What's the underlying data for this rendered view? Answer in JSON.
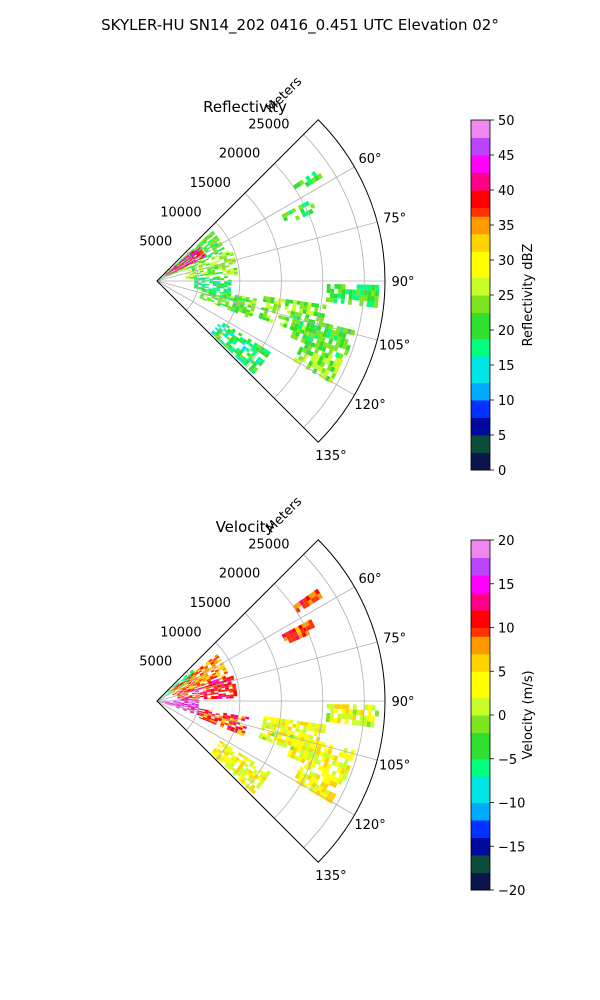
{
  "figure": {
    "title": "SKYLER-HU  SN14_202  0416_0.451 UTC Elevation 02°"
  },
  "chart_data": [
    {
      "type": "heatmap",
      "subtype": "polar-sector",
      "title": "Reflectivity",
      "radial_label": "Meters",
      "radial_ticks": [
        5000,
        10000,
        15000,
        20000,
        25000
      ],
      "radial_max": 27500,
      "angle_ticks": [
        "60°",
        "75°",
        "90°",
        "105°",
        "120°",
        "135°"
      ],
      "angle_tick_values": [
        60,
        75,
        90,
        105,
        120,
        135
      ],
      "theta_range": [
        45,
        135
      ],
      "colorbar": {
        "label": "Reflectivity dBZ",
        "ticks": [
          "0",
          "5",
          "10",
          "15",
          "20",
          "25",
          "30",
          "35",
          "40",
          "45",
          "50"
        ],
        "min": 0,
        "max": 50
      },
      "grid": true,
      "echo_regions": [
        {
          "az": [
            48,
            67
          ],
          "r": [
            500,
            9000
          ],
          "level": 0.42
        },
        {
          "az": [
            50,
            63
          ],
          "r": [
            1200,
            6500
          ],
          "level": 0.8
        },
        {
          "az": [
            67,
            86
          ],
          "r": [
            3500,
            9500
          ],
          "level": 0.48
        },
        {
          "az": [
            86,
            100
          ],
          "r": [
            4500,
            9000
          ],
          "level": 0.36
        },
        {
          "az": [
            100,
            112
          ],
          "r": [
            5500,
            12000
          ],
          "level": 0.44
        },
        {
          "az": [
            98,
            110
          ],
          "r": [
            13000,
            20500
          ],
          "level": 0.46
        },
        {
          "az": [
            104,
            112
          ],
          "r": [
            17000,
            24500
          ],
          "level": 0.42
        },
        {
          "az": [
            113,
            120
          ],
          "r": [
            19000,
            24000
          ],
          "level": 0.48
        },
        {
          "az": [
            91,
            96
          ],
          "r": [
            20500,
            26500
          ],
          "level": 0.4
        },
        {
          "az": [
            122,
            133
          ],
          "r": [
            9000,
            16000
          ],
          "level": 0.38
        },
        {
          "az": [
            62,
            66
          ],
          "r": [
            17000,
            21000
          ],
          "level": 0.4
        },
        {
          "az": [
            55,
            58
          ],
          "r": [
            20000,
            23500
          ],
          "level": 0.4
        }
      ]
    },
    {
      "type": "heatmap",
      "subtype": "polar-sector",
      "title": "Velocity",
      "radial_label": "Meters",
      "radial_ticks": [
        5000,
        10000,
        15000,
        20000,
        25000
      ],
      "radial_max": 27500,
      "angle_ticks": [
        "60°",
        "75°",
        "90°",
        "105°",
        "120°",
        "135°"
      ],
      "angle_tick_values": [
        60,
        75,
        90,
        105,
        120,
        135
      ],
      "theta_range": [
        45,
        135
      ],
      "colorbar": {
        "label": "Velocity (m/s)",
        "ticks": [
          "−20",
          "−15",
          "−10",
          "−5",
          "0",
          "5",
          "10",
          "15",
          "20"
        ],
        "min": -20,
        "max": 20
      },
      "grid": true,
      "echo_regions": [
        {
          "az": [
            48,
            60
          ],
          "r": [
            300,
            5500
          ],
          "level": 0.34
        },
        {
          "az": [
            52,
            70
          ],
          "r": [
            2000,
            9000
          ],
          "level": 0.7
        },
        {
          "az": [
            70,
            88
          ],
          "r": [
            2500,
            9500
          ],
          "level": 0.78
        },
        {
          "az": [
            88,
            108
          ],
          "r": [
            600,
            5000
          ],
          "level": 0.88
        },
        {
          "az": [
            100,
            112
          ],
          "r": [
            5000,
            11000
          ],
          "level": 0.74
        },
        {
          "az": [
            98,
            110
          ],
          "r": [
            13000,
            20500
          ],
          "level": 0.57
        },
        {
          "az": [
            104,
            112
          ],
          "r": [
            17000,
            24500
          ],
          "level": 0.58
        },
        {
          "az": [
            113,
            120
          ],
          "r": [
            19000,
            24000
          ],
          "level": 0.59
        },
        {
          "az": [
            91,
            96
          ],
          "r": [
            20500,
            26500
          ],
          "level": 0.57
        },
        {
          "az": [
            122,
            133
          ],
          "r": [
            9000,
            16000
          ],
          "level": 0.58
        },
        {
          "az": [
            62,
            66
          ],
          "r": [
            17000,
            21000
          ],
          "level": 0.75
        },
        {
          "az": [
            55,
            58
          ],
          "r": [
            20000,
            23500
          ],
          "level": 0.76
        }
      ]
    }
  ]
}
